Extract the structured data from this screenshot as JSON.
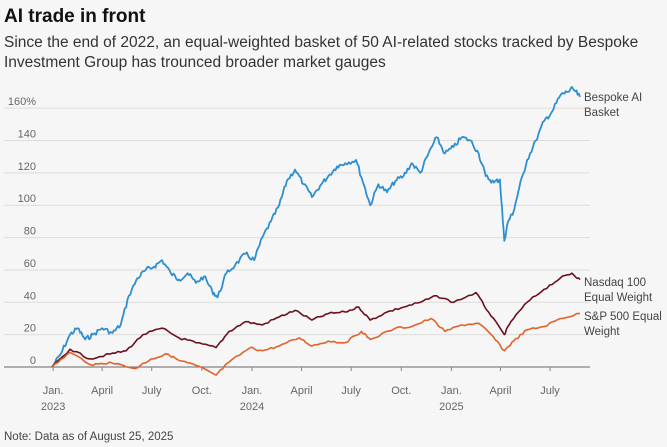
{
  "header": {
    "title": "AI trade in front",
    "subtitle": "Since the end of 2022, an equal-weighted basket of 50 AI-related stocks tracked by Bespoke Investment Group has trounced broader market gauges"
  },
  "footer": {
    "note": "Note: Data as of August 25, 2025"
  },
  "chart_data": {
    "type": "line",
    "title": "AI trade in front",
    "xlabel": "",
    "ylabel": "",
    "ylim": [
      0,
      170
    ],
    "y_ticks": [
      {
        "value": 0,
        "label": "0"
      },
      {
        "value": 20,
        "label": "20"
      },
      {
        "value": 40,
        "label": "40"
      },
      {
        "value": 60,
        "label": "60"
      },
      {
        "value": 80,
        "label": "80"
      },
      {
        "value": 100,
        "label": "100"
      },
      {
        "value": 120,
        "label": "120"
      },
      {
        "value": 140,
        "label": "140"
      },
      {
        "value": 160,
        "label": "160%"
      }
    ],
    "x_range": [
      "2022-12-30",
      "2025-08-25"
    ],
    "x_ticks": [
      {
        "date": "2023-01-01",
        "label": "Jan.",
        "year": "2023"
      },
      {
        "date": "2023-04-01",
        "label": "April",
        "year": ""
      },
      {
        "date": "2023-07-01",
        "label": "July",
        "year": ""
      },
      {
        "date": "2023-10-01",
        "label": "Oct.",
        "year": ""
      },
      {
        "date": "2024-01-01",
        "label": "Jan.",
        "year": "2024"
      },
      {
        "date": "2024-04-01",
        "label": "April",
        "year": ""
      },
      {
        "date": "2024-07-01",
        "label": "July",
        "year": ""
      },
      {
        "date": "2024-10-01",
        "label": "Oct.",
        "year": ""
      },
      {
        "date": "2025-01-01",
        "label": "Jan.",
        "year": "2025"
      },
      {
        "date": "2025-04-01",
        "label": "April",
        "year": ""
      },
      {
        "date": "2025-07-01",
        "label": "July",
        "year": ""
      }
    ],
    "grid": true,
    "series": [
      {
        "name": "Bespoke AI Basket",
        "label_lines": [
          "Bespoke AI",
          "Basket"
        ],
        "color": "#2e8fd0",
        "points": [
          [
            "2022-12-30",
            0
          ],
          [
            "2023-01-15",
            8
          ],
          [
            "2023-02-01",
            20
          ],
          [
            "2023-02-15",
            24
          ],
          [
            "2023-03-01",
            17
          ],
          [
            "2023-03-15",
            20
          ],
          [
            "2023-04-01",
            24
          ],
          [
            "2023-04-20",
            21
          ],
          [
            "2023-05-05",
            26
          ],
          [
            "2023-05-20",
            44
          ],
          [
            "2023-06-05",
            55
          ],
          [
            "2023-06-20",
            60
          ],
          [
            "2023-07-05",
            62
          ],
          [
            "2023-07-20",
            66
          ],
          [
            "2023-08-05",
            58
          ],
          [
            "2023-08-20",
            54
          ],
          [
            "2023-09-05",
            58
          ],
          [
            "2023-09-20",
            52
          ],
          [
            "2023-10-05",
            56
          ],
          [
            "2023-10-20",
            47
          ],
          [
            "2023-10-30",
            43
          ],
          [
            "2023-11-15",
            58
          ],
          [
            "2023-12-01",
            63
          ],
          [
            "2023-12-20",
            70
          ],
          [
            "2024-01-05",
            66
          ],
          [
            "2024-01-20",
            80
          ],
          [
            "2024-02-05",
            90
          ],
          [
            "2024-02-20",
            100
          ],
          [
            "2024-03-05",
            115
          ],
          [
            "2024-03-20",
            122
          ],
          [
            "2024-04-05",
            113
          ],
          [
            "2024-04-20",
            105
          ],
          [
            "2024-05-05",
            112
          ],
          [
            "2024-05-20",
            118
          ],
          [
            "2024-06-05",
            124
          ],
          [
            "2024-06-20",
            126
          ],
          [
            "2024-07-10",
            128
          ],
          [
            "2024-07-25",
            112
          ],
          [
            "2024-08-05",
            100
          ],
          [
            "2024-08-20",
            113
          ],
          [
            "2024-09-05",
            108
          ],
          [
            "2024-09-20",
            115
          ],
          [
            "2024-10-05",
            118
          ],
          [
            "2024-10-20",
            126
          ],
          [
            "2024-11-05",
            120
          ],
          [
            "2024-11-20",
            132
          ],
          [
            "2024-12-05",
            142
          ],
          [
            "2024-12-20",
            132
          ],
          [
            "2025-01-05",
            136
          ],
          [
            "2025-01-20",
            142
          ],
          [
            "2025-02-05",
            140
          ],
          [
            "2025-02-20",
            132
          ],
          [
            "2025-03-05",
            118
          ],
          [
            "2025-03-20",
            114
          ],
          [
            "2025-03-31",
            116
          ],
          [
            "2025-04-08",
            78
          ],
          [
            "2025-04-15",
            90
          ],
          [
            "2025-04-25",
            96
          ],
          [
            "2025-05-05",
            110
          ],
          [
            "2025-05-20",
            128
          ],
          [
            "2025-06-05",
            140
          ],
          [
            "2025-06-20",
            152
          ],
          [
            "2025-07-05",
            158
          ],
          [
            "2025-07-20",
            168
          ],
          [
            "2025-08-01",
            170
          ],
          [
            "2025-08-12",
            172
          ],
          [
            "2025-08-25",
            167
          ]
        ]
      },
      {
        "name": "Nasdaq 100 Equal Weight",
        "label_lines": [
          "Nasdaq 100",
          "Equal Weight"
        ],
        "color": "#6b1020",
        "points": [
          [
            "2022-12-30",
            0
          ],
          [
            "2023-02-01",
            11
          ],
          [
            "2023-03-10",
            5
          ],
          [
            "2023-04-15",
            8
          ],
          [
            "2023-05-15",
            10
          ],
          [
            "2023-06-15",
            20
          ],
          [
            "2023-07-20",
            24
          ],
          [
            "2023-08-20",
            18
          ],
          [
            "2023-09-20",
            15
          ],
          [
            "2023-10-27",
            12
          ],
          [
            "2023-11-20",
            22
          ],
          [
            "2023-12-20",
            28
          ],
          [
            "2024-01-20",
            26
          ],
          [
            "2024-02-20",
            31
          ],
          [
            "2024-03-20",
            35
          ],
          [
            "2024-04-20",
            29
          ],
          [
            "2024-05-20",
            33
          ],
          [
            "2024-06-20",
            34
          ],
          [
            "2024-07-15",
            37
          ],
          [
            "2024-08-05",
            29
          ],
          [
            "2024-09-05",
            34
          ],
          [
            "2024-10-05",
            37
          ],
          [
            "2024-11-05",
            40
          ],
          [
            "2024-12-05",
            44
          ],
          [
            "2025-01-05",
            40
          ],
          [
            "2025-02-15",
            46
          ],
          [
            "2025-03-10",
            34
          ],
          [
            "2025-04-08",
            20
          ],
          [
            "2025-04-20",
            28
          ],
          [
            "2025-05-20",
            40
          ],
          [
            "2025-06-20",
            48
          ],
          [
            "2025-07-20",
            55
          ],
          [
            "2025-08-10",
            58
          ],
          [
            "2025-08-25",
            54
          ]
        ]
      },
      {
        "name": "S&P 500 Equal Weight",
        "label_lines": [
          "S&P 500 Equal",
          "Weight"
        ],
        "color": "#e0632a",
        "points": [
          [
            "2022-12-30",
            0
          ],
          [
            "2023-02-01",
            9
          ],
          [
            "2023-03-15",
            1
          ],
          [
            "2023-04-15",
            3
          ],
          [
            "2023-05-31",
            -1
          ],
          [
            "2023-06-30",
            5
          ],
          [
            "2023-07-31",
            8
          ],
          [
            "2023-08-20",
            4
          ],
          [
            "2023-09-20",
            1
          ],
          [
            "2023-10-27",
            -5
          ],
          [
            "2023-11-20",
            3
          ],
          [
            "2023-12-29",
            12
          ],
          [
            "2024-01-20",
            10
          ],
          [
            "2024-02-20",
            13
          ],
          [
            "2024-03-28",
            18
          ],
          [
            "2024-04-20",
            13
          ],
          [
            "2024-05-20",
            16
          ],
          [
            "2024-06-20",
            15
          ],
          [
            "2024-07-20",
            22
          ],
          [
            "2024-08-05",
            17
          ],
          [
            "2024-09-20",
            24
          ],
          [
            "2024-10-20",
            25
          ],
          [
            "2024-11-25",
            30
          ],
          [
            "2024-12-20",
            22
          ],
          [
            "2025-01-20",
            26
          ],
          [
            "2025-02-20",
            27
          ],
          [
            "2025-03-15",
            20
          ],
          [
            "2025-04-08",
            10
          ],
          [
            "2025-04-25",
            16
          ],
          [
            "2025-05-20",
            23
          ],
          [
            "2025-06-20",
            25
          ],
          [
            "2025-07-20",
            30
          ],
          [
            "2025-08-25",
            33
          ]
        ]
      }
    ]
  }
}
